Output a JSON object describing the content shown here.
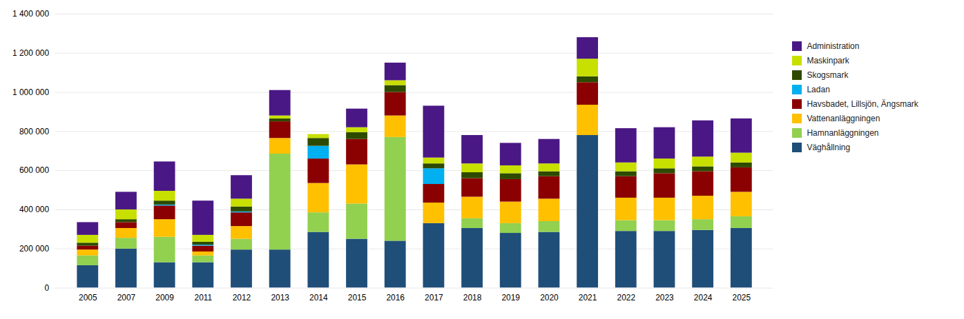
{
  "chart_data": {
    "type": "bar",
    "stacked": true,
    "grid": true,
    "legend": "right",
    "categories": [
      "2005",
      "2007",
      "2009",
      "2011",
      "2012",
      "2013",
      "2014",
      "2015",
      "2016",
      "2017",
      "2018",
      "2019",
      "2020",
      "2021",
      "2022",
      "2023",
      "2024",
      "2025"
    ],
    "series": [
      {
        "name": "Väghållning",
        "color": "#1f4e79",
        "values": [
          115000,
          200000,
          130000,
          130000,
          195000,
          195000,
          285000,
          250000,
          240000,
          330000,
          305000,
          280000,
          285000,
          780000,
          290000,
          290000,
          295000,
          305000
        ]
      },
      {
        "name": "Hamnanläggningen",
        "color": "#92d050",
        "values": [
          50000,
          55000,
          130000,
          35000,
          55000,
          490000,
          100000,
          180000,
          530000,
          0,
          50000,
          50000,
          55000,
          0,
          55000,
          55000,
          55000,
          60000
        ]
      },
      {
        "name": "Vattenanläggningen",
        "color": "#ffc000",
        "values": [
          30000,
          50000,
          90000,
          20000,
          65000,
          80000,
          150000,
          200000,
          110000,
          105000,
          110000,
          110000,
          115000,
          155000,
          115000,
          115000,
          120000,
          125000
        ]
      },
      {
        "name": "Havsbadet, Lillsjön, Ängsmark",
        "color": "#8b0000",
        "values": [
          20000,
          30000,
          70000,
          30000,
          70000,
          85000,
          125000,
          130000,
          120000,
          95000,
          95000,
          115000,
          115000,
          115000,
          110000,
          125000,
          125000,
          125000
        ]
      },
      {
        "name": "Ladan",
        "color": "#00b0f0",
        "values": [
          0,
          0,
          5000,
          5000,
          5000,
          0,
          65000,
          0,
          0,
          80000,
          0,
          0,
          0,
          0,
          0,
          0,
          0,
          0
        ]
      },
      {
        "name": "Skogsmark",
        "color": "#2d4a00",
        "values": [
          15000,
          15000,
          20000,
          15000,
          25000,
          15000,
          40000,
          35000,
          35000,
          25000,
          30000,
          30000,
          25000,
          30000,
          25000,
          25000,
          25000,
          25000
        ]
      },
      {
        "name": "Maskinpark",
        "color": "#c8e000",
        "values": [
          40000,
          50000,
          50000,
          35000,
          40000,
          15000,
          20000,
          25000,
          25000,
          30000,
          45000,
          40000,
          40000,
          90000,
          45000,
          50000,
          50000,
          50000
        ]
      },
      {
        "name": "Administration",
        "color": "#4a1884",
        "values": [
          65000,
          90000,
          150000,
          175000,
          120000,
          130000,
          0,
          95000,
          90000,
          265000,
          145000,
          115000,
          125000,
          110000,
          175000,
          160000,
          185000,
          175000
        ]
      }
    ],
    "ylim": [
      0,
      1400000
    ],
    "yticks": [
      0,
      {
        "value": 200000,
        "label": "200 000"
      },
      {
        "value": 400000,
        "label": "400 000"
      },
      {
        "value": 600000,
        "label": "600 000"
      },
      {
        "value": 800000,
        "label": "800 000"
      },
      {
        "value": 1000000,
        "label": "1 000 000"
      },
      {
        "value": 1200000,
        "label": "1 200 000"
      },
      {
        "value": 1400000,
        "label": "1 400 000"
      }
    ]
  }
}
